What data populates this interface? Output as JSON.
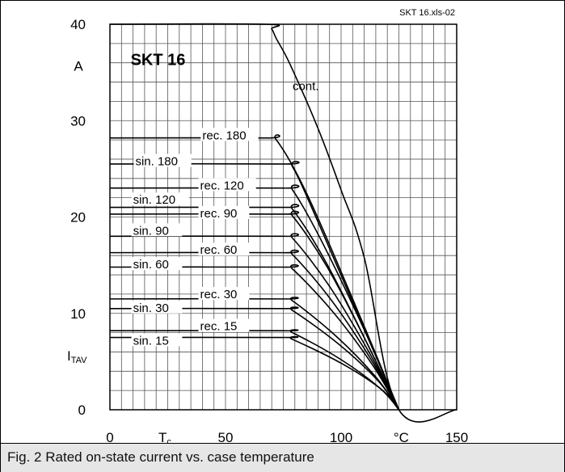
{
  "chart_data": {
    "type": "line",
    "ref": "SKT 16.xls-02",
    "device": "SKT 16",
    "xlim": [
      0,
      150
    ],
    "ylim": [
      0,
      40
    ],
    "x_ticks": [
      {
        "label": "0",
        "value": 0
      },
      {
        "label": "50",
        "value": 50
      },
      {
        "label": "100",
        "value": 100
      },
      {
        "label": "150",
        "value": 150
      }
    ],
    "y_ticks": [
      {
        "label": "0",
        "value": 0
      },
      {
        "label": "10",
        "value": 10
      },
      {
        "label": "20",
        "value": 20
      },
      {
        "label": "30",
        "value": 30
      },
      {
        "label": "40",
        "value": 40
      }
    ],
    "x_unit": "°C",
    "y_unit": "A",
    "series": [
      {
        "name": "cont.",
        "x": [
          0,
          67,
          70,
          72,
          78,
          90,
          100,
          110,
          125,
          150
        ],
        "y": [
          40,
          40,
          39.5,
          38.5,
          35.8,
          29.2,
          22.8,
          15.8,
          0,
          0
        ],
        "label_x": 79,
        "label_y": 33.5
      },
      {
        "name": "rec. 180",
        "x": [
          0,
          67,
          72,
          85,
          105,
          125
        ],
        "y": [
          28.2,
          28.2,
          28.0,
          22.5,
          11.5,
          0
        ],
        "label_x": 40,
        "label_y": 28.4
      },
      {
        "name": "sin. 180",
        "x": [
          0,
          75,
          79,
          90,
          108,
          125
        ],
        "y": [
          25.5,
          25.5,
          25.2,
          19.5,
          9.5,
          0
        ],
        "label_x": 11,
        "label_y": 25.7
      },
      {
        "name": "rec. 120",
        "x": [
          0,
          75,
          79,
          92,
          110,
          125
        ],
        "y": [
          23.0,
          23.0,
          22.8,
          17.3,
          8.3,
          0
        ],
        "label_x": 39,
        "label_y": 23.2
      },
      {
        "name": "sin. 120",
        "x": [
          0,
          75,
          79,
          93,
          110,
          125
        ],
        "y": [
          21.0,
          21.0,
          20.8,
          15.5,
          7.5,
          0
        ],
        "label_x": 10,
        "label_y": 21.7
      },
      {
        "name": "rec. 90",
        "x": [
          0,
          75,
          79,
          94,
          111,
          125
        ],
        "y": [
          20.3,
          20.3,
          20.1,
          14.8,
          7.0,
          0
        ],
        "label_x": 39,
        "label_y": 20.3
      },
      {
        "name": "sin. 90",
        "x": [
          0,
          75,
          79,
          95,
          112,
          125
        ],
        "y": [
          18.0,
          18.0,
          17.8,
          12.8,
          6.0,
          0
        ],
        "label_x": 10,
        "label_y": 18.5
      },
      {
        "name": "rec. 60",
        "x": [
          0,
          75,
          79,
          96,
          113,
          125
        ],
        "y": [
          16.3,
          16.3,
          16.1,
          11.3,
          5.2,
          0
        ],
        "label_x": 39,
        "label_y": 16.5
      },
      {
        "name": "sin. 60",
        "x": [
          0,
          75,
          79,
          97,
          114,
          125
        ],
        "y": [
          14.8,
          14.8,
          14.6,
          10.0,
          4.5,
          0
        ],
        "label_x": 10,
        "label_y": 15.0
      },
      {
        "name": "rec. 30",
        "x": [
          0,
          75,
          79,
          98,
          115,
          125
        ],
        "y": [
          11.5,
          11.5,
          11.3,
          7.6,
          3.4,
          0
        ],
        "label_x": 39,
        "label_y": 11.9
      },
      {
        "name": "sin. 30",
        "x": [
          0,
          75,
          79,
          99,
          116,
          125
        ],
        "y": [
          10.5,
          10.5,
          10.3,
          6.8,
          3.0,
          0
        ],
        "label_x": 10,
        "label_y": 10.5
      },
      {
        "name": "rec. 15",
        "x": [
          0,
          75,
          79,
          100,
          117,
          125
        ],
        "y": [
          8.2,
          8.2,
          8.0,
          5.2,
          2.2,
          0
        ],
        "label_x": 39,
        "label_y": 8.6
      },
      {
        "name": "sin. 15",
        "x": [
          0,
          75,
          79,
          101,
          118,
          125
        ],
        "y": [
          7.5,
          7.5,
          7.3,
          4.7,
          2.0,
          0
        ],
        "label_x": 10,
        "label_y": 7.1
      }
    ],
    "grid": true,
    "grid_step_x": 5,
    "grid_step_y": 2
  },
  "caption": "Fig. 2 Rated on-state current vs. case temperature"
}
